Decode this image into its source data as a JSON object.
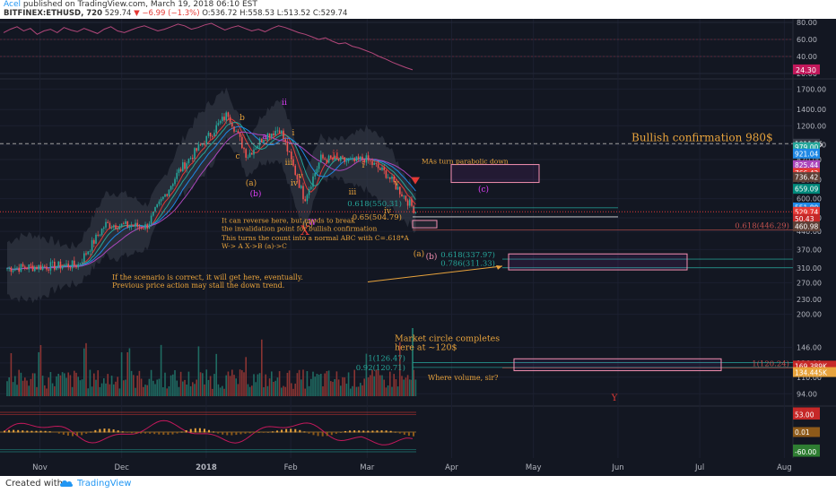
{
  "header": {
    "author": "Acel",
    "published": " published on TradingView.com, March 19, 2018 06:10 EST",
    "symbol": "BITFINEX:ETHUSD, 720",
    "last": "529.74",
    "change": "−6.99 (−1.3%)",
    "ohlc": "O:536.72 H:558.53 L:513.52 C:529.74"
  },
  "footer": {
    "created": "Created with",
    "brand": "TradingView"
  },
  "colors": {
    "bg": "#131722",
    "orange": "#e8a33c",
    "magenta": "#e040fb",
    "red": "#e53935",
    "teal": "#26a69a",
    "pink": "#f48fb1"
  },
  "chart_data": [
    {
      "type": "line",
      "name": "Upper oscillator",
      "scale_labels": [
        "80.00",
        "60.00",
        "40.00",
        "20.00"
      ],
      "last_value": "24.30"
    },
    {
      "type": "candlestick",
      "name": "BITFINEX:ETHUSD, 720",
      "y_scale": "log",
      "x_labels": [
        "Nov",
        "Dec",
        "2018",
        "Feb",
        "Mar",
        "Apr",
        "May",
        "Jun",
        "Jul",
        "Aug"
      ],
      "y_ticks": [
        "1700.00",
        "1400.00",
        "1200.00",
        "1000.00",
        "870.00",
        "720.00",
        "600.00",
        "500.00",
        "440.00",
        "370.00",
        "310.00",
        "270.00",
        "230.00",
        "200.00",
        "146.00",
        "126.00",
        "110.00",
        "94.00"
      ],
      "price_badges": [
        {
          "text": "1011.86",
          "color": "#3a3f4b"
        },
        {
          "text": "979.00",
          "color": "#26a69a"
        },
        {
          "text": "921.04",
          "color": "#1e88e5"
        },
        {
          "text": "825.44",
          "color": "#ab47bc"
        },
        {
          "text": "766.42",
          "color": "#e53935"
        },
        {
          "text": "736.42",
          "color": "#5d4037"
        },
        {
          "text": "659.09",
          "color": "#00897b"
        },
        {
          "text": "551.80",
          "color": "#1e88e5"
        },
        {
          "text": "529.74",
          "color": "#e53935"
        },
        {
          "text": "50.43",
          "color": "#c62828"
        },
        {
          "text": "460.98",
          "color": "#5d4037"
        }
      ],
      "close_points": [
        {
          "x": "Oct 20",
          "y": 310
        },
        {
          "x": "Nov 15",
          "y": 320
        },
        {
          "x": "Nov 25",
          "y": 470
        },
        {
          "x": "Dec 10",
          "y": 460
        },
        {
          "x": "Dec 22",
          "y": 780
        },
        {
          "x": "Jan 9",
          "y": 1350
        },
        {
          "x": "Jan 16",
          "y": 900
        },
        {
          "x": "Jan 22",
          "y": 1080
        },
        {
          "x": "Jan 28",
          "y": 1170
        },
        {
          "x": "Feb 6",
          "y": 600
        },
        {
          "x": "Feb 12",
          "y": 880
        },
        {
          "x": "Feb 24",
          "y": 850
        },
        {
          "x": "Feb 28",
          "y": 880
        },
        {
          "x": "Mar 8",
          "y": 760
        },
        {
          "x": "Mar 19",
          "y": 530
        }
      ],
      "fib_levels": [
        {
          "label": "0.618(550.31)",
          "price": 550.31
        },
        {
          "label": "0.65(504.79)",
          "price": 504.79
        },
        {
          "label": "0.618(446.29)",
          "price": 446.29
        },
        {
          "label": "0.618(337.97)",
          "price": 337.97
        },
        {
          "label": "0.786(311.33)",
          "price": 311.33
        },
        {
          "label": "1(126.47)",
          "price": 126.47
        },
        {
          "label": "0.92(120.71)",
          "price": 120.71
        },
        {
          "label": "1(120.24)",
          "price": 120.24
        }
      ],
      "wave_labels": [
        {
          "text": "b"
        },
        {
          "text": "a"
        },
        {
          "text": "c"
        },
        {
          "text": "(a)"
        },
        {
          "text": "(b)"
        },
        {
          "text": "ii"
        },
        {
          "text": "i"
        },
        {
          "text": "iii"
        },
        {
          "text": "iv"
        },
        {
          "text": "v"
        },
        {
          "text": "(c)"
        },
        {
          "text": "W"
        },
        {
          "text": "X"
        },
        {
          "text": "ii"
        },
        {
          "text": "i"
        },
        {
          "text": "iii"
        },
        {
          "text": "iv"
        },
        {
          "text": "v"
        },
        {
          "text": "(a)"
        },
        {
          "text": "(b)"
        },
        {
          "text": "(c)"
        },
        {
          "text": "Y"
        }
      ],
      "annotations": {
        "bullish": "Bullish confirmation 980$",
        "mas": "MAs turn parabolic down",
        "reverse1": "It can reverse here, but needs to break",
        "reverse2": "the invalidation point for bullish confirmation",
        "abc1": "This turns the count into a normal ABC with C=.618*A",
        "abc2": "W-> A  X->B  (a)->C",
        "scenario1": "If the scenario is correct, it will get here, eventually.",
        "scenario2": "Previous price action may stall the down trend.",
        "circle1": "Market circle completes",
        "circle2": "here at ~120$",
        "volume": "Where volume, sir?"
      },
      "volume_badges": [
        "169.389K",
        "134.445K"
      ]
    },
    {
      "type": "line",
      "name": "Lower oscillator",
      "scale_labels": [
        "60.00",
        "53.00",
        "0.01",
        "-53.00",
        "-60.00"
      ]
    }
  ]
}
